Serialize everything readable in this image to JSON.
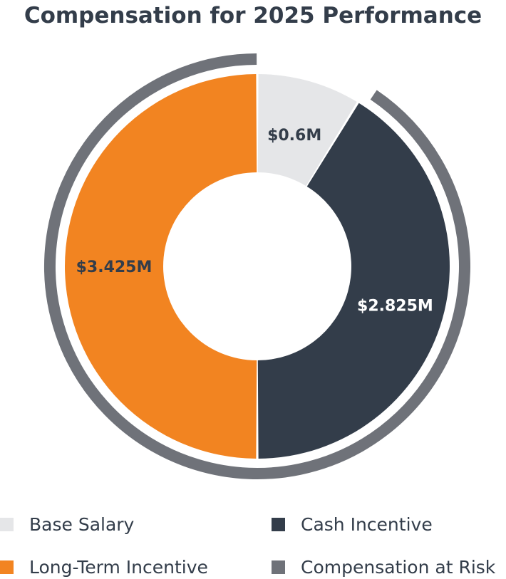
{
  "chart_data": {
    "type": "pie",
    "title": "Compensation for 2025 Performance",
    "unit": "$M",
    "slices": [
      {
        "name": "Base Salary",
        "value": 0.6,
        "label": "$0.6M",
        "color": "#e5e6e8",
        "label_color": "#333d4a"
      },
      {
        "name": "Cash Incentive",
        "value": 2.825,
        "label": "$2.825M",
        "color": "#333d4a",
        "label_color": "#ffffff"
      },
      {
        "name": "Long-Term Incentive",
        "value": 3.425,
        "label": "$3.425M",
        "color": "#f28421",
        "label_color": "#333d4a"
      }
    ],
    "at_risk": {
      "name": "Compensation at Risk",
      "color": "#6f7279",
      "includes": [
        "Cash Incentive",
        "Long-Term Incentive"
      ]
    },
    "legend": [
      {
        "name": "Base Salary",
        "color": "#e5e6e8"
      },
      {
        "name": "Cash Incentive",
        "color": "#333d4a"
      },
      {
        "name": "Long-Term Incentive",
        "color": "#f28421"
      },
      {
        "name": "Compensation at Risk",
        "color": "#6f7279"
      }
    ],
    "legend_position": "bottom"
  }
}
